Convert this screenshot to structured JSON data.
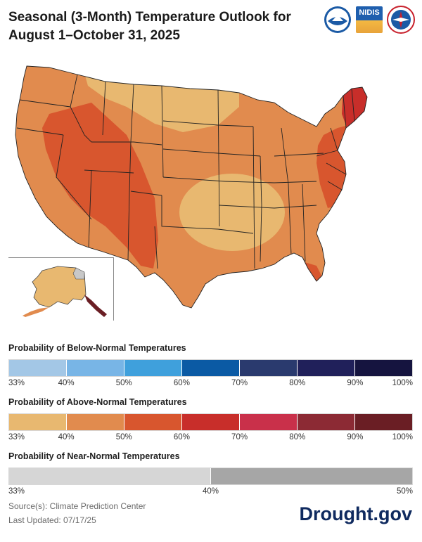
{
  "title": "Seasonal (3-Month) Temperature Outlook for August 1–October 31, 2025",
  "logos": [
    {
      "name": "noaa-logo",
      "text": "NOAA"
    },
    {
      "name": "nidis-logo",
      "text": "NIDIS"
    },
    {
      "name": "nws-logo",
      "text": "NATIONAL WEATHER SERVICE"
    }
  ],
  "colors": {
    "above_33": "#e8b870",
    "above_40": "#e18b4e",
    "above_50": "#d8562e",
    "above_60": "#c82e2a",
    "above_70": "#c9304a",
    "above_80": "#8c2a34",
    "above_90": "#6a1e24",
    "near_normal": "#c8c8c8",
    "state_line": "#222222",
    "county_line": "#b07a4a"
  },
  "legends": {
    "below": {
      "title": "Probability of Below-Normal Temperatures",
      "colors": [
        "#a3c7e6",
        "#78b5e6",
        "#3fa0dc",
        "#0b5aa4",
        "#2a3a6e",
        "#20205a",
        "#15143f"
      ],
      "ticks": [
        "33%",
        "40%",
        "50%",
        "60%",
        "70%",
        "80%",
        "90%",
        "100%"
      ]
    },
    "above": {
      "title": "Probability of Above-Normal Temperatures",
      "colors": [
        "#e8b870",
        "#e18b4e",
        "#d8562e",
        "#c82e2a",
        "#c9304a",
        "#8c2a34",
        "#6a1e24"
      ],
      "ticks": [
        "33%",
        "40%",
        "50%",
        "60%",
        "70%",
        "80%",
        "90%",
        "100%"
      ]
    },
    "near": {
      "title": "Probability of Near-Normal Temperatures",
      "colors": [
        "#d6d6d6",
        "#a6a6a6"
      ],
      "ticks": [
        "33%",
        "40%",
        "50%"
      ]
    }
  },
  "footer": {
    "source": "Source(s): Climate Prediction Center",
    "updated": "Last Updated: 07/17/25"
  },
  "brand": "Drought.gov"
}
